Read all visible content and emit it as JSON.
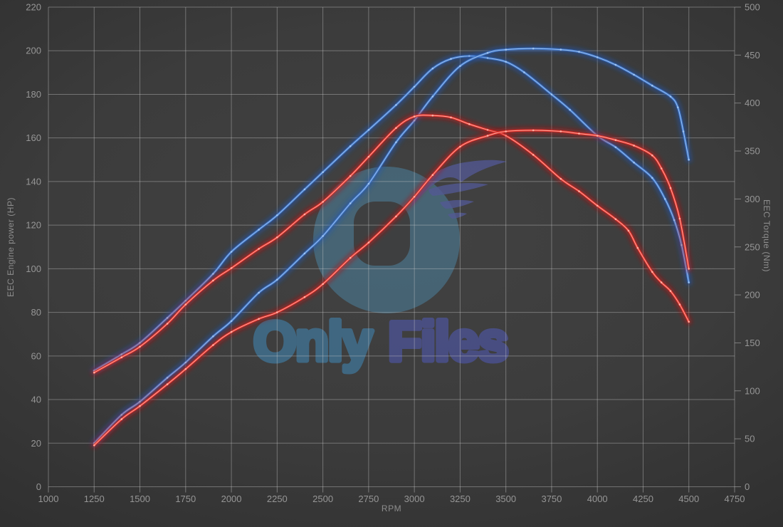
{
  "chart_data": {
    "type": "line",
    "title": "",
    "xlabel": "RPM",
    "ylabel_left": "EEC Engine power (HP)",
    "ylabel_right": "EEC Torque (Nm)",
    "x_range": [
      1000,
      4750
    ],
    "x_ticks": [
      1000,
      1250,
      1500,
      1750,
      2000,
      2250,
      2500,
      2750,
      3000,
      3250,
      3500,
      3750,
      4000,
      4250,
      4500,
      4750
    ],
    "y_left_range": [
      0,
      220
    ],
    "y_left_ticks": [
      0,
      20,
      40,
      60,
      80,
      100,
      120,
      140,
      160,
      180,
      200,
      220
    ],
    "y_right_range": [
      0,
      500
    ],
    "y_right_ticks": [
      0,
      50,
      100,
      150,
      200,
      250,
      300,
      350,
      400,
      450,
      500
    ],
    "grid": true,
    "legend": "none",
    "series": [
      {
        "name": "blue-torque",
        "axis": "right",
        "color_main": "#3c74c8",
        "color_glow": "#2356b4",
        "color_core": "#a6c8f0",
        "x": [
          1250,
          1400,
          1500,
          1650,
          1750,
          1900,
          2000,
          2150,
          2250,
          2400,
          2500,
          2650,
          2750,
          2900,
          3000,
          3100,
          3200,
          3300,
          3400,
          3500,
          3600,
          3750,
          3850,
          4000,
          4100,
          4200,
          4300,
          4370,
          4420,
          4460,
          4500
        ],
        "values": [
          121,
          138,
          150,
          176,
          194,
          222,
          245,
          268,
          283,
          310,
          328,
          355,
          372,
          398,
          417,
          436,
          446,
          449,
          447,
          443,
          432,
          409,
          393,
          366,
          354,
          338,
          322,
          300,
          278,
          252,
          213
        ]
      },
      {
        "name": "blue-power",
        "axis": "left",
        "color_main": "#3c74c8",
        "color_glow": "#2356b4",
        "color_core": "#a6c8f0",
        "x": [
          1250,
          1400,
          1500,
          1650,
          1750,
          1900,
          2000,
          2150,
          2250,
          2400,
          2500,
          2650,
          2750,
          2900,
          3000,
          3100,
          3250,
          3400,
          3500,
          3650,
          3800,
          3900,
          4000,
          4100,
          4200,
          4300,
          4400,
          4440,
          4470,
          4500
        ],
        "values": [
          20,
          33,
          39,
          50,
          57,
          69,
          76,
          89,
          95,
          107,
          115,
          130,
          139,
          158,
          168,
          179,
          193,
          199,
          200.5,
          201,
          200.5,
          199.5,
          197,
          193.5,
          189,
          184,
          179,
          174,
          163,
          150
        ]
      },
      {
        "name": "red-torque",
        "axis": "right",
        "color_main": "#e02e28",
        "color_glow": "#bd1715",
        "color_core": "#ffb9ac",
        "x": [
          1250,
          1400,
          1500,
          1650,
          1750,
          1900,
          2000,
          2150,
          2250,
          2400,
          2500,
          2650,
          2750,
          2900,
          3000,
          3100,
          3200,
          3300,
          3400,
          3500,
          3650,
          3800,
          3900,
          4000,
          4100,
          4170,
          4220,
          4300,
          4350,
          4400,
          4450,
          4500
        ],
        "values": [
          119,
          135,
          146,
          170,
          190,
          215,
          228,
          248,
          260,
          284,
          297,
          324,
          344,
          374,
          386,
          387,
          385,
          378,
          372,
          366,
          346,
          321,
          308,
          293,
          279,
          267,
          249,
          224,
          213,
          204,
          190,
          172
        ]
      },
      {
        "name": "red-power",
        "axis": "left",
        "color_main": "#e02e28",
        "color_glow": "#bd1715",
        "color_core": "#ffb9ac",
        "x": [
          1250,
          1400,
          1500,
          1650,
          1750,
          1900,
          2000,
          2150,
          2250,
          2400,
          2500,
          2650,
          2750,
          2900,
          3000,
          3100,
          3250,
          3400,
          3500,
          3650,
          3800,
          3900,
          4000,
          4100,
          4200,
          4300,
          4350,
          4400,
          4450,
          4500
        ],
        "values": [
          19,
          31,
          37,
          47,
          54,
          65,
          71,
          77,
          80,
          87,
          93,
          105,
          112,
          124,
          133,
          143,
          156,
          161,
          163,
          163.5,
          163,
          162,
          161,
          159,
          156.5,
          152,
          146,
          137,
          123,
          100
        ]
      }
    ]
  },
  "watermark": {
    "text_primary": "Only",
    "text_secondary": "Files",
    "color_primary": "#417ea6",
    "color_secondary": "#4f57a5",
    "logo_circle_color": "#4e86a6",
    "logo_wing_color": "#575ea6"
  },
  "style": {
    "grid_color": "#d2d2d2",
    "tick_label_color": "#969696",
    "axis_title_color": "#8d8d8d"
  }
}
